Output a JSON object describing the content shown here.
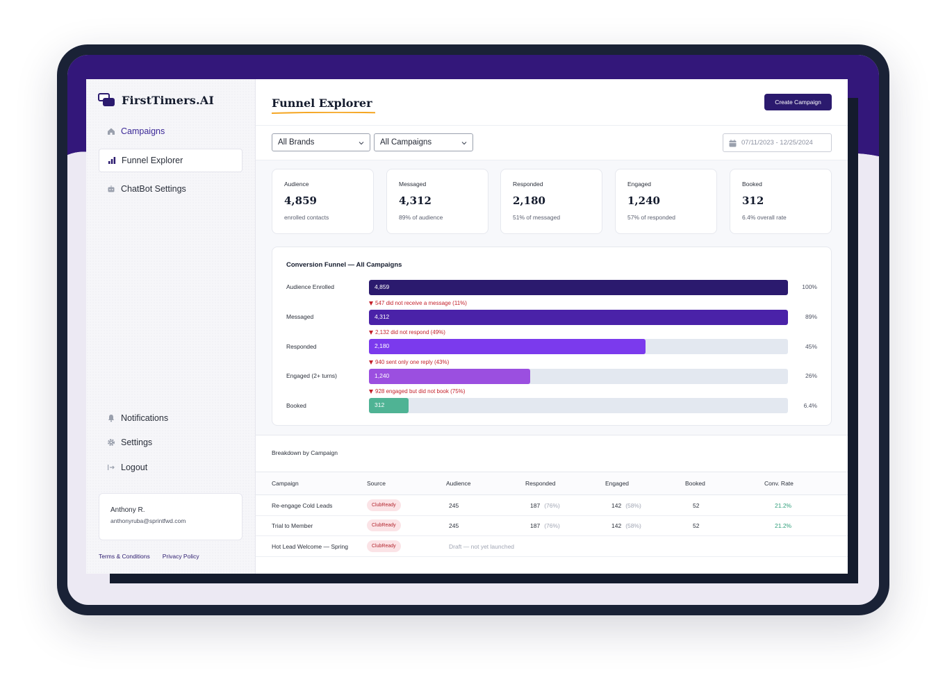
{
  "brand": {
    "name": "FirstTimers.AI"
  },
  "nav": {
    "items": [
      {
        "label": "Campaigns",
        "icon": "home-icon"
      },
      {
        "label": "Funnel Explorer",
        "icon": "bar-chart-icon"
      },
      {
        "label": "ChatBot Settings",
        "icon": "chatbot-icon"
      }
    ],
    "bottom": [
      {
        "label": "Notifications",
        "icon": "bell-icon"
      },
      {
        "label": "Settings",
        "icon": "gear-icon"
      },
      {
        "label": "Logout",
        "icon": "logout-icon"
      }
    ]
  },
  "user": {
    "name": "Anthony R.",
    "email": "anthonyruba@sprintfwd.com"
  },
  "footer": {
    "terms": "Terms & Conditions",
    "privacy": "Privacy Policy"
  },
  "header": {
    "title": "Funnel Explorer",
    "create_label": "Create Campaign"
  },
  "filters": {
    "brand": "All Brands",
    "campaign": "All Campaigns",
    "date_range": "07/11/2023 - 12/25/2024"
  },
  "stats": [
    {
      "label": "Audience",
      "value": "4,859",
      "sub": "enrolled contacts"
    },
    {
      "label": "Messaged",
      "value": "4,312",
      "sub": "89% of audience"
    },
    {
      "label": "Responded",
      "value": "2,180",
      "sub": "51% of messaged"
    },
    {
      "label": "Engaged",
      "value": "1,240",
      "sub": "57% of responded"
    },
    {
      "label": "Booked",
      "value": "312",
      "sub": "6.4% overall rate"
    }
  ],
  "funnel": {
    "title": "Conversion Funnel — All Campaigns",
    "stages": [
      {
        "label": "Audience Enrolled",
        "value": "4,859",
        "fraction": 1.0,
        "pct": "100%",
        "color": "#2b1a6e"
      },
      {
        "label": "Messaged",
        "value": "4,312",
        "fraction": 1.0,
        "pct": "89%",
        "color": "#4a22a8"
      },
      {
        "label": "Responded",
        "value": "2,180",
        "fraction": 0.66,
        "pct": "45%",
        "color": "#7b3aed"
      },
      {
        "label": "Engaged (2+ turns)",
        "value": "1,240",
        "fraction": 0.385,
        "pct": "26%",
        "color": "#9b4fe0"
      },
      {
        "label": "Booked",
        "value": "312",
        "fraction": 0.095,
        "pct": "6.4%",
        "color": "#4fb394"
      }
    ],
    "drops": [
      "547 did not receive a message (11%)",
      "2,132 did not respond (49%)",
      "940 sent only one reply (43%)",
      "928 engaged but did not book (75%)"
    ]
  },
  "breakdown": {
    "title": "Breakdown by Campaign",
    "columns": [
      "Campaign",
      "Source",
      "Audience",
      "Responded",
      "Engaged",
      "Booked",
      "Conv. Rate"
    ],
    "rows": [
      {
        "campaign": "Re-engage Cold Leads",
        "source": "ClubReady",
        "audience": "245",
        "responded": "187",
        "responded_pct": "(76%)",
        "engaged": "142",
        "engaged_pct": "(58%)",
        "booked": "52",
        "rate": "21.2%"
      },
      {
        "campaign": "Trial to Member",
        "source": "ClubReady",
        "audience": "245",
        "responded": "187",
        "responded_pct": "(76%)",
        "engaged": "142",
        "engaged_pct": "(58%)",
        "booked": "52",
        "rate": "21.2%"
      },
      {
        "campaign": "Hot Lead Welcome — Spring",
        "source": "ClubReady",
        "draft": "Draft — not yet launched"
      }
    ]
  },
  "colors": {
    "primary": "#2b1a6e",
    "accent": "#f5a623",
    "success": "#2f9e7a",
    "danger": "#c3212b"
  }
}
